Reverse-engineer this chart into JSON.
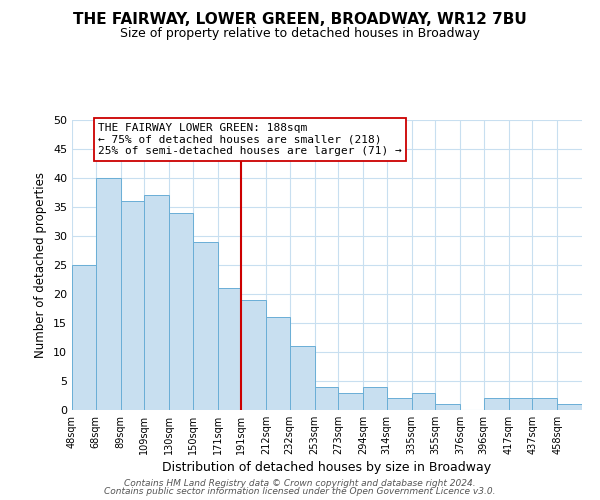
{
  "title": "THE FAIRWAY, LOWER GREEN, BROADWAY, WR12 7BU",
  "subtitle": "Size of property relative to detached houses in Broadway",
  "xlabel": "Distribution of detached houses by size in Broadway",
  "ylabel": "Number of detached properties",
  "bar_color": "#c8dff0",
  "bar_edge_color": "#6aaed6",
  "background_color": "#ffffff",
  "grid_color": "#c8dff0",
  "vline_x": 191,
  "vline_color": "#cc0000",
  "annotation_line1": "THE FAIRWAY LOWER GREEN: 188sqm",
  "annotation_line2": "← 75% of detached houses are smaller (218)",
  "annotation_line3": "25% of semi-detached houses are larger (71) →",
  "annotation_box_color": "#ffffff",
  "annotation_box_edge_color": "#cc0000",
  "footer_line1": "Contains HM Land Registry data © Crown copyright and database right 2024.",
  "footer_line2": "Contains public sector information licensed under the Open Government Licence v3.0.",
  "bin_labels": [
    "48sqm",
    "68sqm",
    "89sqm",
    "109sqm",
    "130sqm",
    "150sqm",
    "171sqm",
    "191sqm",
    "212sqm",
    "232sqm",
    "253sqm",
    "273sqm",
    "294sqm",
    "314sqm",
    "335sqm",
    "355sqm",
    "376sqm",
    "396sqm",
    "417sqm",
    "437sqm",
    "458sqm"
  ],
  "bin_edges": [
    48,
    68,
    89,
    109,
    130,
    150,
    171,
    191,
    212,
    232,
    253,
    273,
    294,
    314,
    335,
    355,
    376,
    396,
    417,
    437,
    458
  ],
  "bar_heights": [
    25,
    40,
    36,
    37,
    34,
    29,
    21,
    19,
    16,
    11,
    4,
    3,
    4,
    2,
    3,
    1,
    0,
    2,
    2,
    2,
    1
  ],
  "ylim": [
    0,
    50
  ],
  "yticks": [
    0,
    5,
    10,
    15,
    20,
    25,
    30,
    35,
    40,
    45,
    50
  ],
  "xlim_left": 48,
  "xlim_right": 458
}
